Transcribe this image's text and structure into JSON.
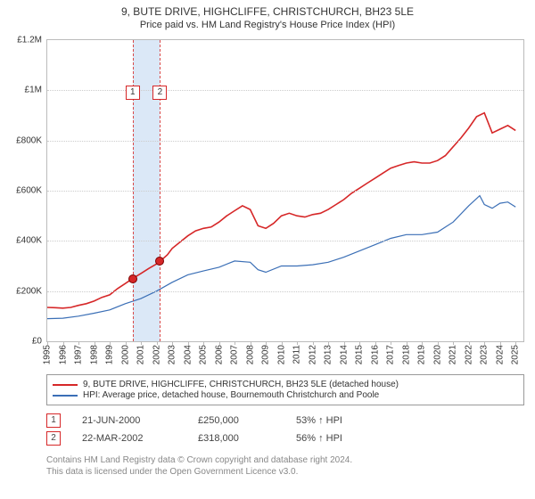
{
  "title": "9, BUTE DRIVE, HIGHCLIFFE, CHRISTCHURCH, BH23 5LE",
  "subtitle": "Price paid vs. HM Land Registry's House Price Index (HPI)",
  "chart": {
    "type": "line",
    "x_range": [
      1995,
      2025.5
    ],
    "y_range": [
      0,
      1200000
    ],
    "y_ticks": [
      0,
      200000,
      400000,
      600000,
      800000,
      1000000,
      1200000
    ],
    "y_tick_labels": [
      "£0",
      "£200K",
      "£400K",
      "£600K",
      "£800K",
      "£1M",
      "£1.2M"
    ],
    "x_ticks": [
      1995,
      1996,
      1997,
      1998,
      1999,
      2000,
      2001,
      2002,
      2003,
      2004,
      2005,
      2006,
      2007,
      2008,
      2009,
      2010,
      2011,
      2012,
      2013,
      2014,
      2015,
      2016,
      2017,
      2018,
      2019,
      2020,
      2021,
      2022,
      2023,
      2024,
      2025
    ],
    "grid_color": "#cccccc",
    "border_color": "#bbbbbb",
    "background_color": "#ffffff",
    "label_fontsize": 10,
    "title_fontsize": 12,
    "subtitle_fontsize": 11,
    "marker_band_color": "#dbe8f7",
    "marker_line_color": "#d94a4a",
    "series": [
      {
        "name": "price_paid",
        "label": "9, BUTE DRIVE, HIGHCLIFFE, CHRISTCHURCH, BH23 5LE (detached house)",
        "color": "#d62728",
        "line_width": 1.6,
        "data": [
          [
            1995.0,
            135000
          ],
          [
            1995.5,
            134000
          ],
          [
            1996.0,
            132000
          ],
          [
            1996.5,
            135000
          ],
          [
            1997.0,
            143000
          ],
          [
            1997.5,
            150000
          ],
          [
            1998.0,
            160000
          ],
          [
            1998.5,
            175000
          ],
          [
            1999.0,
            185000
          ],
          [
            1999.5,
            210000
          ],
          [
            2000.0,
            230000
          ],
          [
            2000.47,
            250000
          ],
          [
            2001.0,
            270000
          ],
          [
            2001.5,
            290000
          ],
          [
            2002.0,
            308000
          ],
          [
            2002.22,
            318000
          ],
          [
            2002.7,
            345000
          ],
          [
            2003.0,
            370000
          ],
          [
            2003.5,
            395000
          ],
          [
            2004.0,
            420000
          ],
          [
            2004.5,
            440000
          ],
          [
            2005.0,
            450000
          ],
          [
            2005.5,
            455000
          ],
          [
            2006.0,
            475000
          ],
          [
            2006.5,
            500000
          ],
          [
            2007.0,
            520000
          ],
          [
            2007.5,
            540000
          ],
          [
            2008.0,
            525000
          ],
          [
            2008.5,
            460000
          ],
          [
            2009.0,
            450000
          ],
          [
            2009.5,
            470000
          ],
          [
            2010.0,
            500000
          ],
          [
            2010.5,
            510000
          ],
          [
            2011.0,
            500000
          ],
          [
            2011.5,
            495000
          ],
          [
            2012.0,
            505000
          ],
          [
            2012.5,
            510000
          ],
          [
            2013.0,
            525000
          ],
          [
            2013.5,
            545000
          ],
          [
            2014.0,
            565000
          ],
          [
            2014.5,
            590000
          ],
          [
            2015.0,
            610000
          ],
          [
            2015.5,
            630000
          ],
          [
            2016.0,
            650000
          ],
          [
            2016.5,
            670000
          ],
          [
            2017.0,
            690000
          ],
          [
            2017.5,
            700000
          ],
          [
            2018.0,
            710000
          ],
          [
            2018.5,
            715000
          ],
          [
            2019.0,
            710000
          ],
          [
            2019.5,
            710000
          ],
          [
            2020.0,
            720000
          ],
          [
            2020.5,
            740000
          ],
          [
            2021.0,
            775000
          ],
          [
            2021.5,
            810000
          ],
          [
            2022.0,
            850000
          ],
          [
            2022.5,
            895000
          ],
          [
            2023.0,
            910000
          ],
          [
            2023.5,
            830000
          ],
          [
            2024.0,
            845000
          ],
          [
            2024.5,
            860000
          ],
          [
            2025.0,
            840000
          ]
        ]
      },
      {
        "name": "hpi",
        "label": "HPI: Average price, detached house, Bournemouth Christchurch and Poole",
        "color": "#3b6fb6",
        "line_width": 1.2,
        "data": [
          [
            1995.0,
            90000
          ],
          [
            1996.0,
            92000
          ],
          [
            1997.0,
            100000
          ],
          [
            1998.0,
            112000
          ],
          [
            1999.0,
            125000
          ],
          [
            2000.0,
            150000
          ],
          [
            2001.0,
            170000
          ],
          [
            2002.0,
            200000
          ],
          [
            2003.0,
            235000
          ],
          [
            2004.0,
            265000
          ],
          [
            2005.0,
            280000
          ],
          [
            2006.0,
            295000
          ],
          [
            2007.0,
            320000
          ],
          [
            2008.0,
            315000
          ],
          [
            2008.5,
            285000
          ],
          [
            2009.0,
            275000
          ],
          [
            2010.0,
            300000
          ],
          [
            2011.0,
            300000
          ],
          [
            2012.0,
            305000
          ],
          [
            2013.0,
            315000
          ],
          [
            2014.0,
            335000
          ],
          [
            2015.0,
            360000
          ],
          [
            2016.0,
            385000
          ],
          [
            2017.0,
            410000
          ],
          [
            2018.0,
            425000
          ],
          [
            2019.0,
            425000
          ],
          [
            2020.0,
            435000
          ],
          [
            2021.0,
            475000
          ],
          [
            2022.0,
            540000
          ],
          [
            2022.7,
            580000
          ],
          [
            2023.0,
            545000
          ],
          [
            2023.5,
            530000
          ],
          [
            2024.0,
            550000
          ],
          [
            2024.5,
            555000
          ],
          [
            2025.0,
            535000
          ]
        ]
      }
    ],
    "transaction_markers": [
      {
        "id": "1",
        "x": 2000.47,
        "y": 250000,
        "box_top_y": 1020000
      },
      {
        "id": "2",
        "x": 2002.22,
        "y": 318000,
        "box_top_y": 1020000
      }
    ]
  },
  "legend": {
    "border_color": "#999999",
    "items": [
      {
        "color": "#d62728",
        "label": "9, BUTE DRIVE, HIGHCLIFFE, CHRISTCHURCH, BH23 5LE (detached house)"
      },
      {
        "color": "#3b6fb6",
        "label": "HPI: Average price, detached house, Bournemouth Christchurch and Poole"
      }
    ]
  },
  "transactions": [
    {
      "id": "1",
      "date": "21-JUN-2000",
      "price": "£250,000",
      "hpi": "53% ↑ HPI"
    },
    {
      "id": "2",
      "date": "22-MAR-2002",
      "price": "£318,000",
      "hpi": "56% ↑ HPI"
    }
  ],
  "footer": {
    "line1": "Contains HM Land Registry data © Crown copyright and database right 2024.",
    "line2": "This data is licensed under the Open Government Licence v3.0."
  }
}
